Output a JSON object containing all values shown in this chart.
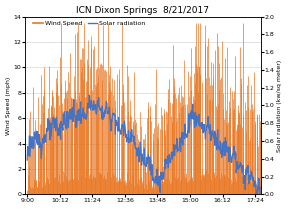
{
  "title": "ICN Dixon Springs  8/21/2017",
  "ylabel_left": "Wind Speed (mph)",
  "ylabel_right": "Solar radiation (kw/sq meter)",
  "x_tick_labels": [
    "9:00",
    "10:12",
    "11:24",
    "12:36",
    "13:48",
    "15:00",
    "16:12",
    "17:24"
  ],
  "xtick_pos": [
    0,
    72,
    144,
    216,
    288,
    360,
    432,
    504
  ],
  "xlim": [
    -4,
    516
  ],
  "ylim_left": [
    0,
    14
  ],
  "ylim_right": [
    0.0,
    2.0
  ],
  "yticks_left": [
    0,
    2,
    4,
    6,
    8,
    10,
    12,
    14
  ],
  "yticks_right": [
    0.0,
    0.2,
    0.4,
    0.6,
    0.8,
    1.0,
    1.2,
    1.4,
    1.6,
    1.8,
    2.0
  ],
  "wind_color": "#E87722",
  "solar_color": "#4472C4",
  "background_color": "#FFFFFF",
  "title_fontsize": 6.5,
  "label_fontsize": 4.5,
  "tick_fontsize": 4.5,
  "legend_fontsize": 4.5,
  "wind_seed": 42,
  "solar_seed": 123
}
